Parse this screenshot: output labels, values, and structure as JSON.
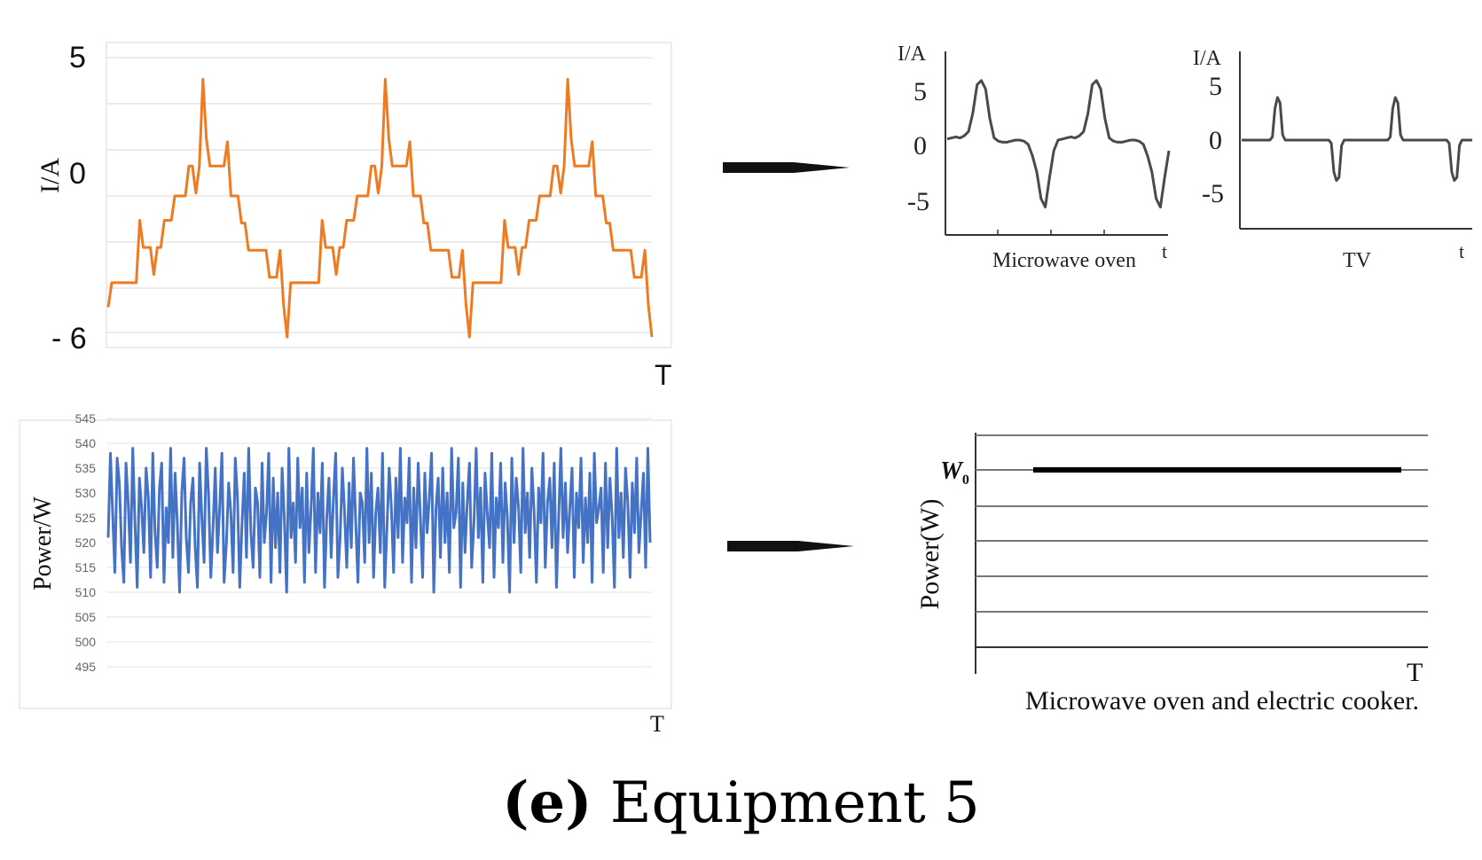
{
  "caption": {
    "letter": "(e)",
    "text": "Equipment 5"
  },
  "chart_data": [
    {
      "type": "line",
      "ylabel": "I/A",
      "xlabel": "T",
      "yticks": [
        "5",
        "0",
        "- 6"
      ],
      "ylim": [
        -6,
        5
      ],
      "color": "#ee7b22",
      "series": [
        {
          "values": [
            -4.1,
            -3.2,
            -3.2,
            -3.2,
            -3.2,
            -3.2,
            -3.2,
            -3.2,
            -3.2,
            -0.9,
            -1.9,
            -1.9,
            -1.9,
            -2.9,
            -1.9,
            -1.9,
            -0.9,
            -0.9,
            -0.9,
            0,
            0,
            0,
            0,
            1.1,
            1.1,
            0.1,
            1.1,
            4.3,
            2.1,
            1.1,
            1.1,
            1.1,
            1.1,
            1.1,
            2.0,
            0,
            0,
            0,
            -1.0,
            -1.0,
            -2.0,
            -2.0,
            -2.0,
            -2.0,
            -2.0,
            -2.0,
            -3.0,
            -3.0,
            -3.0,
            -2.0,
            -4.0,
            -5.2,
            -3.2,
            -3.2,
            -3.2,
            -3.2,
            -3.2,
            -3.2,
            -3.2,
            -3.2,
            -3.2,
            -0.9,
            -1.9,
            -1.9,
            -1.9,
            -2.9,
            -1.9,
            -1.9,
            -0.9,
            -0.9,
            -0.9,
            0,
            0,
            0,
            0,
            1.1,
            1.1,
            0.1,
            1.1,
            4.3,
            2.1,
            1.1,
            1.1,
            1.1,
            1.1,
            1.1,
            2.0,
            0,
            0,
            0,
            -1.0,
            -1.0,
            -2.0,
            -2.0,
            -2.0,
            -2.0,
            -2.0,
            -2.0,
            -3.0,
            -3.0,
            -3.0,
            -2.0,
            -4.0,
            -5.2,
            -3.2,
            -3.2,
            -3.2,
            -3.2,
            -3.2,
            -3.2,
            -3.2,
            -3.2,
            -3.2,
            -0.9,
            -1.9,
            -1.9,
            -1.9,
            -2.9,
            -1.9,
            -1.9,
            -0.9,
            -0.9,
            -0.9,
            0,
            0,
            0,
            0,
            1.1,
            1.1,
            0.1,
            1.1,
            4.3,
            2.1,
            1.1,
            1.1,
            1.1,
            1.1,
            1.1,
            2.0,
            0,
            0,
            0,
            -1.0,
            -1.0,
            -2.0,
            -2.0,
            -2.0,
            -2.0,
            -2.0,
            -2.0,
            -3.0,
            -3.0,
            -3.0,
            -2.0,
            -4.0,
            -5.2
          ]
        }
      ]
    },
    {
      "type": "line",
      "title": "Microwave oven",
      "ylabel": "I/A",
      "xlabel": "t",
      "yticks": [
        "5",
        "0",
        "-5"
      ],
      "ylim": [
        -7,
        8
      ],
      "color": "#4a4a4a",
      "series": [
        {
          "values": [
            0.1,
            0.2,
            0.3,
            0.2,
            0.4,
            0.8,
            2.5,
            5.2,
            5.6,
            4.8,
            2.0,
            0.2,
            -0.1,
            -0.2,
            -0.2,
            -0.1,
            0,
            0,
            -0.1,
            -0.4,
            -1.5,
            -3.0,
            -5.5,
            -6.3,
            -3.5,
            -1.0,
            0,
            0.1,
            0.2,
            0.3,
            0.2,
            0.4,
            0.8,
            2.5,
            5.2,
            5.6,
            4.8,
            2.0,
            0.2,
            -0.1,
            -0.2,
            -0.2,
            -0.1,
            0,
            0,
            -0.1,
            -0.4,
            -1.5,
            -3.0,
            -5.5,
            -6.3,
            -3.5,
            -1.0
          ]
        }
      ]
    },
    {
      "type": "line",
      "title": "TV",
      "ylabel": "I/A",
      "xlabel": "t",
      "yticks": [
        "5",
        "0",
        "-5"
      ],
      "ylim": [
        -8,
        8
      ],
      "color": "#4a4a4a",
      "series": [
        {
          "values": [
            0,
            0,
            0,
            0,
            0,
            0,
            0,
            0,
            0,
            0,
            0,
            0,
            0.3,
            3.0,
            4.0,
            3.5,
            0.5,
            0,
            0,
            0,
            0,
            0,
            0,
            0,
            0,
            0,
            0,
            0,
            0,
            0,
            0,
            0,
            0,
            0,
            0,
            -0.3,
            -3.0,
            -3.8,
            -3.5,
            -0.5,
            0,
            0,
            0,
            0,
            0,
            0,
            0,
            0,
            0,
            0,
            0,
            0,
            0,
            0,
            0,
            0,
            0,
            0,
            0.3,
            3.0,
            4.0,
            3.5,
            0.5,
            0,
            0,
            0,
            0,
            0,
            0,
            0,
            0,
            0,
            0,
            0,
            0,
            0,
            0,
            0,
            0,
            0,
            0,
            -0.3,
            -3.0,
            -3.8,
            -3.5,
            -0.5,
            0,
            0,
            0,
            0,
            0
          ]
        }
      ]
    },
    {
      "type": "line",
      "ylabel": "Power/W",
      "xlabel": "T",
      "yticks": [
        "545",
        "540",
        "535",
        "530",
        "525",
        "520",
        "515",
        "510",
        "505",
        "500",
        "495"
      ],
      "ylim": [
        495,
        545
      ],
      "color": "#4472c4",
      "series": [
        {
          "values": [
            521,
            538,
            526,
            514,
            537,
            532,
            519,
            512,
            536,
            528,
            516,
            539,
            524,
            511,
            533,
            527,
            518,
            535,
            529,
            513,
            538,
            522,
            515,
            531,
            536,
            512,
            527,
            520,
            539,
            517,
            534,
            524,
            510,
            530,
            537,
            521,
            514,
            528,
            533,
            519,
            511,
            536,
            525,
            516,
            539,
            530,
            513,
            523,
            535,
            518,
            527,
            538,
            512,
            520,
            532,
            526,
            514,
            537,
            529,
            511,
            524,
            534,
            517,
            539,
            522,
            515,
            531,
            528,
            513,
            536,
            520,
            526,
            538,
            512,
            533,
            519,
            530,
            514,
            535,
            525,
            510,
            539,
            521,
            528,
            516,
            537,
            523,
            531,
            512,
            534,
            518,
            527,
            539,
            514,
            530,
            522,
            536,
            511,
            525,
            533,
            517,
            529,
            538,
            513,
            521,
            535,
            526,
            515,
            532,
            519,
            537,
            524,
            512,
            530,
            528,
            516,
            539,
            520,
            534,
            513,
            526,
            531,
            518,
            538,
            511,
            523,
            535,
            527,
            514,
            533,
            521,
            539,
            516,
            529,
            524,
            537,
            512,
            531,
            519,
            536,
            525,
            513,
            534,
            522,
            529,
            538,
            510,
            527,
            533,
            517,
            535,
            520,
            530,
            514,
            539,
            523,
            526,
            537,
            511,
            532,
            518,
            528,
            536,
            515,
            524,
            539,
            521,
            531,
            512,
            534,
            526,
            519,
            538,
            513,
            529,
            523,
            536,
            516,
            532,
            525,
            510,
            537,
            520,
            533,
            527,
            514,
            539,
            522,
            530,
            517,
            535,
            526,
            512,
            531,
            524,
            538,
            515,
            528,
            533,
            519,
            536,
            511,
            525,
            539,
            521,
            532,
            518,
            527,
            535,
            513,
            530,
            523,
            537,
            516,
            529,
            520,
            534,
            512,
            538,
            524,
            527,
            531,
            514,
            536,
            519,
            533,
            525,
            511,
            539,
            521,
            530,
            517,
            535,
            528,
            513,
            532,
            522,
            537,
            518,
            526,
            534,
            515,
            539,
            520
          ]
        }
      ]
    },
    {
      "type": "line",
      "title": "Microwave oven and electric cooker.",
      "ylabel": "Power(W)",
      "xlabel": "T",
      "annotation": "W0",
      "color": "#000000"
    }
  ]
}
